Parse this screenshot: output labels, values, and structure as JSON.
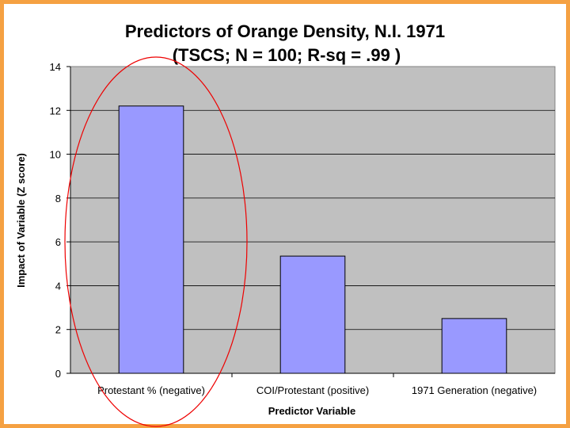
{
  "chart_data": {
    "type": "bar",
    "title": "Predictors of Orange Density, N.I. 1971",
    "subtitle": "(TSCS; N = 100; R-sq = .99 )",
    "xlabel": "Predictor Variable",
    "ylabel": "Impact of Variable (Z score)",
    "categories": [
      "Protestant % (negative)",
      "COI/Protestant (positive)",
      "1971 Generation (negative)"
    ],
    "values": [
      12.2,
      5.35,
      2.5
    ],
    "ylim": [
      0,
      14
    ],
    "yticks": [
      "0",
      "2",
      "4",
      "6",
      "8",
      "10",
      "12",
      "14"
    ],
    "grid": true,
    "legend": "none",
    "colors": {
      "bar": "#9999ff",
      "plot_bg": "#c0c0c0",
      "frame": "#f5a142",
      "annotation": "#ee0000"
    }
  }
}
